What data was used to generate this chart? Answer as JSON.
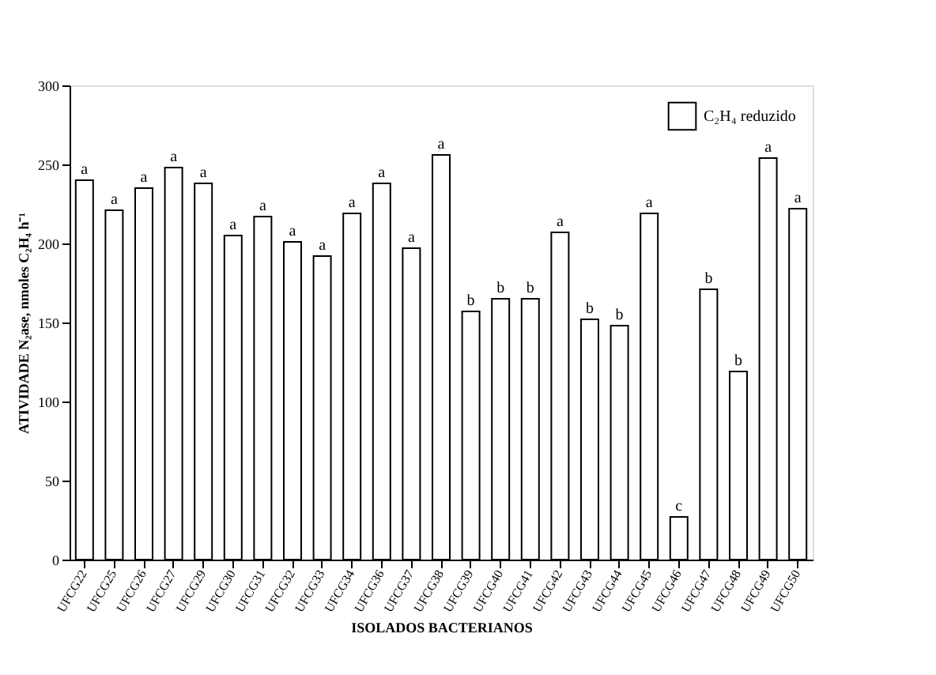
{
  "chart_data": {
    "type": "bar",
    "xlabel": "ISOLADOS BACTERIANOS",
    "ylabel": "ATIVIDADE N₂ase, nmoles C₂H₄ h⁻¹",
    "categories": [
      "UFCG22",
      "UFCG25",
      "UFCG26",
      "UFCG27",
      "UFCG29",
      "UFCG30",
      "UFCG31",
      "UFCG32",
      "UFCG33",
      "UFCG34",
      "UFCG36",
      "UFCG37",
      "UFCG38",
      "UFCG39",
      "UFCG40",
      "UFCG41",
      "UFCG42",
      "UFCG43",
      "UFCG44",
      "UFCG45",
      "UFCG46",
      "UFCG47",
      "UFCG48",
      "UFCG49",
      "UFCG50"
    ],
    "series": [
      {
        "name": "C₂H₄ reduzido",
        "color": "#ffffff",
        "values": [
          240,
          221,
          235,
          248,
          238,
          205,
          217,
          201,
          192,
          219,
          238,
          197,
          256,
          157,
          165,
          165,
          207,
          152,
          148,
          219,
          27,
          171,
          119,
          254,
          222
        ]
      }
    ],
    "ylim": [
      0,
      300
    ],
    "yticks": [
      0,
      50,
      100,
      150,
      200,
      250,
      300
    ],
    "grid": false,
    "legend": "top right",
    "annotations": [
      {
        "text": "a",
        "x": "UFCG22",
        "y": 240
      },
      {
        "text": "a",
        "x": "UFCG25",
        "y": 221
      },
      {
        "text": "a",
        "x": "UFCG26",
        "y": 235
      },
      {
        "text": "a",
        "x": "UFCG27",
        "y": 248
      },
      {
        "text": "a",
        "x": "UFCG29",
        "y": 238
      },
      {
        "text": "a",
        "x": "UFCG30",
        "y": 205
      },
      {
        "text": "a",
        "x": "UFCG31",
        "y": 217
      },
      {
        "text": "a",
        "x": "UFCG32",
        "y": 201
      },
      {
        "text": "a",
        "x": "UFCG33",
        "y": 192
      },
      {
        "text": "a",
        "x": "UFCG34",
        "y": 219
      },
      {
        "text": "a",
        "x": "UFCG36",
        "y": 238
      },
      {
        "text": "a",
        "x": "UFCG37",
        "y": 197
      },
      {
        "text": "a",
        "x": "UFCG38",
        "y": 256
      },
      {
        "text": "b",
        "x": "UFCG39",
        "y": 157
      },
      {
        "text": "b",
        "x": "UFCG40",
        "y": 165
      },
      {
        "text": "b",
        "x": "UFCG41",
        "y": 165
      },
      {
        "text": "a",
        "x": "UFCG42",
        "y": 207
      },
      {
        "text": "b",
        "x": "UFCG43",
        "y": 152
      },
      {
        "text": "b",
        "x": "UFCG44",
        "y": 148
      },
      {
        "text": "a",
        "x": "UFCG45",
        "y": 219
      },
      {
        "text": "c",
        "x": "UFCG46",
        "y": 27
      },
      {
        "text": "b",
        "x": "UFCG47",
        "y": 171
      },
      {
        "text": "b",
        "x": "UFCG48",
        "y": 119
      },
      {
        "text": "a",
        "x": "UFCG49",
        "y": 254
      },
      {
        "text": "a",
        "x": "UFCG50",
        "y": 222
      }
    ]
  }
}
